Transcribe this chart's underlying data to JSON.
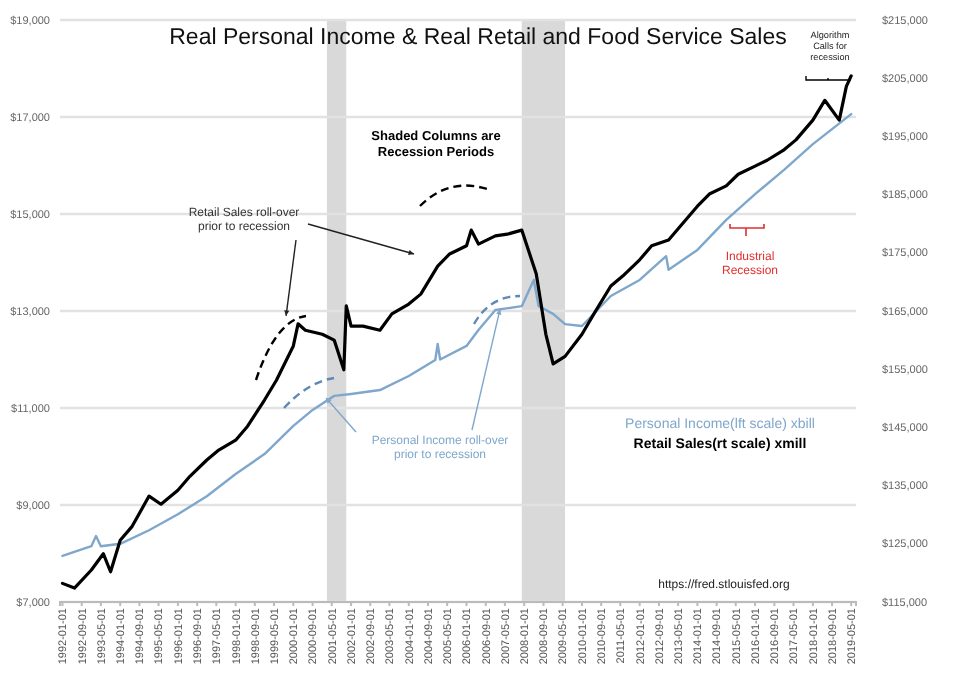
{
  "chart_data": {
    "type": "line",
    "title": "Real Personal Income & Real Retail and Food Service Sales",
    "annotations": [
      "Shaded Columns are Recession Periods",
      {
        "text": "Retail Sales roll-over prior to recession",
        "x": "1999-10-01",
        "y": 12900
      },
      {
        "text": "Personal Income roll-over prior to recession",
        "x": "2007-03-01",
        "y": 13040
      },
      "Industrial Recession",
      "Algorithm Calls for recession",
      "https://fred.stlouisfed.org"
    ],
    "xlim": [
      "1991-12-01",
      "2019-07-01"
    ],
    "xticks": [
      "1992-01-01",
      "1992-09-01",
      "1993-05-01",
      "1994-01-01",
      "1994-09-01",
      "1995-05-01",
      "1996-01-01",
      "1996-09-01",
      "1997-05-01",
      "1998-01-01",
      "1998-09-01",
      "1999-05-01",
      "2000-01-01",
      "2000-09-01",
      "2001-05-01",
      "2002-01-01",
      "2002-09-01",
      "2003-05-01",
      "2004-01-01",
      "2004-09-01",
      "2005-05-01",
      "2006-01-01",
      "2006-09-01",
      "2007-05-01",
      "2008-01-01",
      "2008-09-01",
      "2009-05-01",
      "2010-01-01",
      "2010-09-01",
      "2011-05-01",
      "2012-01-01",
      "2012-09-01",
      "2013-05-01",
      "2014-01-01",
      "2014-09-01",
      "2015-05-01",
      "2016-01-01",
      "2016-09-01",
      "2017-05-01",
      "2018-01-01",
      "2018-09-01",
      "2019-05-01"
    ],
    "ylim": [
      7000,
      19000
    ],
    "yticks": [
      {
        "value": 7000,
        "label": "$7,000"
      },
      {
        "value": 9000,
        "label": "$9,000"
      },
      {
        "value": 11000,
        "label": "$11,000"
      },
      {
        "value": 13000,
        "label": "$13,000"
      },
      {
        "value": 15000,
        "label": "$15,000"
      },
      {
        "value": 17000,
        "label": "$17,000"
      },
      {
        "value": 19000,
        "label": "$19,000"
      }
    ],
    "y2lim": [
      115000,
      215000
    ],
    "y2ticks": [
      {
        "value": 115000,
        "label": "$115,000"
      },
      {
        "value": 125000,
        "label": "$125,000"
      },
      {
        "value": 135000,
        "label": "$135,000"
      },
      {
        "value": 145000,
        "label": "$145,000"
      },
      {
        "value": 155000,
        "label": "$155,000"
      },
      {
        "value": 165000,
        "label": "$165,000"
      },
      {
        "value": 175000,
        "label": "$175,000"
      },
      {
        "value": 185000,
        "label": "$185,000"
      },
      {
        "value": 195000,
        "label": "$195,000"
      },
      {
        "value": 205000,
        "label": "$205,000"
      },
      {
        "value": 215000,
        "label": "$215,000"
      }
    ],
    "grid": "y",
    "legend": "bottom right",
    "line_style": "solid",
    "bands": [
      {
        "axis": "x",
        "from": "2001-03-01",
        "to": "2001-11-01",
        "color": "#d9d9d9"
      },
      {
        "axis": "x",
        "from": "2007-12-01",
        "to": "2009-06-01",
        "color": "#d9d9d9"
      }
    ],
    "series": [
      {
        "name": "Personal Income(lft scale) xbill",
        "color": "#7fa7cc",
        "axis": "y",
        "x": [
          "1992-01-01",
          "1993-01-01",
          "1993-03-01",
          "1993-05-01",
          "1994-01-01",
          "1995-01-01",
          "1996-01-01",
          "1997-01-01",
          "1998-01-01",
          "1999-01-01",
          "2000-01-01",
          "2000-09-01",
          "2001-06-01",
          "2002-01-01",
          "2003-01-01",
          "2004-01-01",
          "2004-12-01",
          "2005-01-01",
          "2005-02-01",
          "2006-01-01",
          "2006-06-01",
          "2007-01-01",
          "2007-12-01",
          "2008-05-01",
          "2008-07-01",
          "2009-01-01",
          "2009-06-01",
          "2010-01-01",
          "2011-01-01",
          "2012-01-01",
          "2012-12-01",
          "2013-01-01",
          "2014-01-01",
          "2015-01-01",
          "2016-01-01",
          "2017-01-01",
          "2018-01-01",
          "2019-05-01"
        ],
        "values": [
          7950,
          8150,
          8360,
          8150,
          8200,
          8480,
          8810,
          9180,
          9640,
          10050,
          10630,
          10960,
          11250,
          11290,
          11370,
          11660,
          11990,
          12320,
          12000,
          12280,
          12610,
          13020,
          13100,
          13640,
          13100,
          12940,
          12730,
          12690,
          13310,
          13640,
          14130,
          13850,
          14260,
          14880,
          15410,
          15910,
          16440,
          17060
        ]
      },
      {
        "name": "Retail Sales(rt scale) xmill",
        "color": "#000000",
        "axis": "y2",
        "x": [
          "1992-01-01",
          "1992-06-01",
          "1993-01-01",
          "1993-06-01",
          "1993-09-01",
          "1994-01-01",
          "1994-06-01",
          "1995-01-01",
          "1995-06-01",
          "1996-01-01",
          "1996-06-01",
          "1997-01-01",
          "1997-06-01",
          "1998-01-01",
          "1998-06-01",
          "1999-01-01",
          "1999-06-01",
          "2000-01-01",
          "2000-03-01",
          "2000-06-01",
          "2001-01-01",
          "2001-06-01",
          "2001-10-01",
          "2001-11-01",
          "2002-01-01",
          "2002-06-01",
          "2003-01-01",
          "2003-06-01",
          "2004-01-01",
          "2004-06-01",
          "2005-01-01",
          "2005-06-01",
          "2006-01-01",
          "2006-03-01",
          "2006-06-01",
          "2007-01-01",
          "2007-06-01",
          "2007-12-01",
          "2008-06-01",
          "2008-10-01",
          "2009-01-01",
          "2009-06-01",
          "2010-01-01",
          "2010-06-01",
          "2011-01-01",
          "2011-06-01",
          "2012-01-01",
          "2012-06-01",
          "2013-01-01",
          "2013-06-01",
          "2014-01-01",
          "2014-06-01",
          "2015-01-01",
          "2015-06-01",
          "2016-01-01",
          "2016-06-01",
          "2017-01-01",
          "2017-06-01",
          "2018-01-01",
          "2018-06-01",
          "2018-12-01",
          "2019-03-01",
          "2019-05-01"
        ],
        "values": [
          118200,
          117400,
          120500,
          123300,
          120200,
          125600,
          128000,
          133200,
          131800,
          134200,
          136600,
          139400,
          141100,
          142800,
          145200,
          149700,
          153100,
          159000,
          162800,
          161700,
          161000,
          160000,
          154900,
          165900,
          162400,
          162400,
          161700,
          164500,
          166200,
          167900,
          172700,
          174800,
          176200,
          178900,
          176500,
          177900,
          178200,
          178900,
          171400,
          161000,
          155900,
          157200,
          161000,
          164500,
          169300,
          171000,
          173800,
          176200,
          177200,
          179600,
          183000,
          185100,
          186500,
          188500,
          189900,
          190900,
          192700,
          194400,
          197800,
          201200,
          197800,
          203600,
          205400
        ]
      }
    ]
  }
}
